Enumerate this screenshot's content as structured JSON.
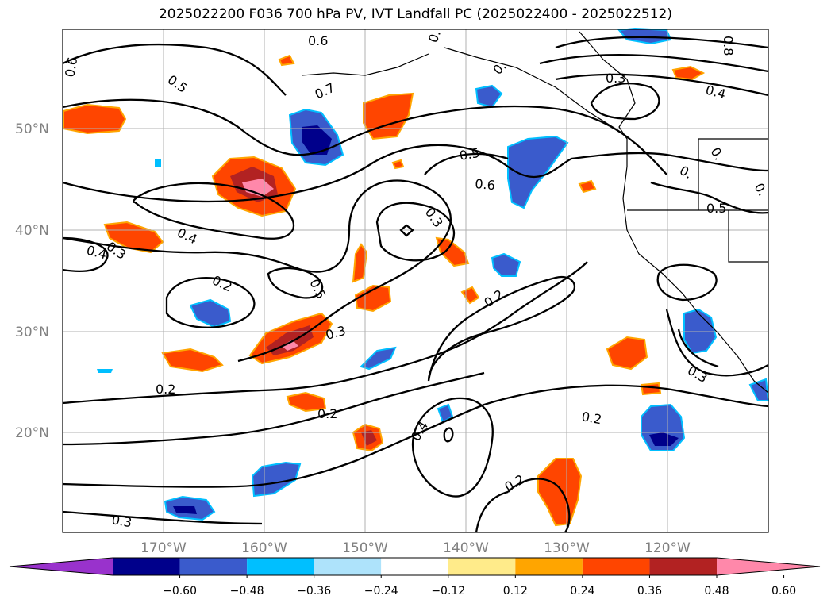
{
  "title": "2025022200 F036 700 hPa PV, IVT Landfall PC (2025022400 - 2025022512)",
  "lat_labels": [
    "50°N",
    "40°N",
    "30°N",
    "20°N"
  ],
  "lon_labels": [
    "170°W",
    "160°W",
    "150°W",
    "140°W",
    "130°W",
    "120°W"
  ],
  "contour_labels": [
    "0.6",
    "0.5",
    "0.7",
    "0.6",
    "0.3",
    "0.4",
    "0.5",
    "0.6",
    "0.3",
    "0.4",
    "0.3",
    "0.4",
    "0.2",
    "0.5",
    "0.3",
    "0.2",
    "0.2",
    "0.2",
    "0.4",
    "0.2",
    "0.2",
    "0.3",
    "0.3",
    "0.8",
    "0.",
    "0.",
    "0.5",
    "0.",
    "0.",
    "0."
  ],
  "colorbar": {
    "tick_labels": [
      "−0.60",
      "−0.48",
      "−0.36",
      "−0.24",
      "−0.12",
      "0.12",
      "0.24",
      "0.36",
      "0.48",
      "0.60"
    ],
    "colors": [
      "#9932cc",
      "#00008b",
      "#3a5bcc",
      "#00bfff",
      "#aee3fb",
      "#ffffff",
      "#ffeb8a",
      "#ffa500",
      "#ff4500",
      "#b22222",
      "#ff88aa"
    ]
  }
}
